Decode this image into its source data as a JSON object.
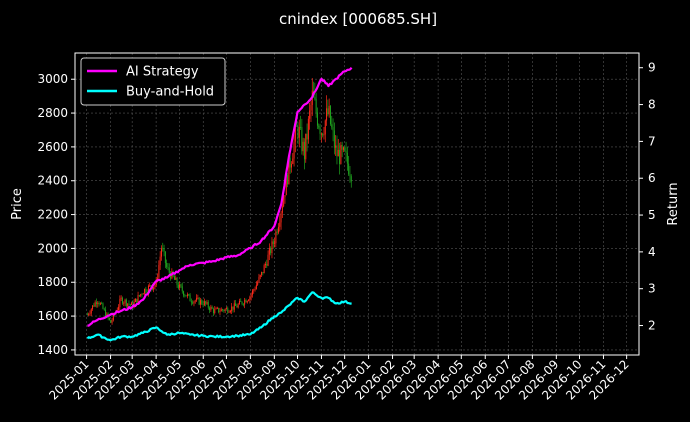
{
  "chart_data": {
    "type": "line",
    "title": "cnindex [000685.SH]",
    "ylabel_left": "Price",
    "ylabel_right": "Return",
    "grid": true,
    "legend_position": "top-left",
    "colors": {
      "background": "#000000",
      "ai_strategy": "#ff00ff",
      "buy_and_hold": "#00ffff",
      "candle_up": "#ff2a1a",
      "candle_down": "#1fa31f",
      "grid": "#555555"
    },
    "x_tick_labels": [
      "2025-01",
      "2025-02",
      "2025-03",
      "2025-04",
      "2025-05",
      "2025-06",
      "2025-07",
      "2025-08",
      "2025-09",
      "2025-10",
      "2025-11",
      "2025-12",
      "2026-01",
      "2026-02",
      "2026-03",
      "2026-04",
      "2026-05",
      "2026-06",
      "2026-07",
      "2026-08",
      "2026-09",
      "2026-10",
      "2026-11",
      "2026-12"
    ],
    "y_left": {
      "ticks": [
        1400,
        1600,
        1800,
        2000,
        2200,
        2400,
        2600,
        2800,
        3000
      ],
      "lim": [
        1370,
        3155
      ]
    },
    "y_right": {
      "ticks": [
        2,
        3,
        4,
        5,
        6,
        7,
        8,
        9
      ],
      "lim": [
        1.2,
        9.4
      ]
    },
    "price_series": {
      "dates": [
        "2025-01-02",
        "2025-01-15",
        "2025-02-01",
        "2025-02-15",
        "2025-03-01",
        "2025-03-15",
        "2025-04-01",
        "2025-04-08",
        "2025-04-15",
        "2025-05-01",
        "2025-05-15",
        "2025-06-01",
        "2025-06-15",
        "2025-07-01",
        "2025-07-15",
        "2025-08-01",
        "2025-08-15",
        "2025-09-01",
        "2025-09-10",
        "2025-09-20",
        "2025-10-01",
        "2025-10-10",
        "2025-10-20",
        "2025-11-01",
        "2025-11-10",
        "2025-11-20",
        "2025-12-01",
        "2025-12-10"
      ],
      "close": [
        1610,
        1700,
        1560,
        1700,
        1660,
        1750,
        1790,
        2010,
        1880,
        1770,
        1700,
        1680,
        1630,
        1640,
        1660,
        1720,
        1840,
        2050,
        2240,
        2480,
        2720,
        2560,
        2890,
        2700,
        2800,
        2560,
        2540,
        2450
      ]
    },
    "series": [
      {
        "name": "AI Strategy",
        "dates": [
          "2025-01-02",
          "2025-01-15",
          "2025-02-01",
          "2025-02-15",
          "2025-03-01",
          "2025-03-15",
          "2025-04-01",
          "2025-04-15",
          "2025-05-01",
          "2025-05-15",
          "2025-06-01",
          "2025-06-15",
          "2025-07-01",
          "2025-07-15",
          "2025-08-01",
          "2025-08-15",
          "2025-09-01",
          "2025-09-10",
          "2025-09-20",
          "2025-10-01",
          "2025-10-10",
          "2025-10-20",
          "2025-11-01",
          "2025-11-10",
          "2025-11-20",
          "2025-12-01",
          "2025-12-10"
        ],
        "values": [
          2.0,
          2.15,
          2.3,
          2.4,
          2.5,
          2.7,
          3.2,
          3.3,
          3.5,
          3.65,
          3.7,
          3.75,
          3.85,
          3.9,
          4.1,
          4.3,
          4.7,
          5.3,
          6.6,
          7.8,
          8.0,
          8.2,
          8.7,
          8.5,
          8.7,
          8.9,
          9.0
        ]
      },
      {
        "name": "Buy-and-Hold",
        "dates": [
          "2025-01-02",
          "2025-01-15",
          "2025-02-01",
          "2025-02-15",
          "2025-03-01",
          "2025-03-15",
          "2025-04-01",
          "2025-04-08",
          "2025-04-15",
          "2025-05-01",
          "2025-05-15",
          "2025-06-01",
          "2025-06-15",
          "2025-07-01",
          "2025-07-15",
          "2025-08-01",
          "2025-08-15",
          "2025-09-01",
          "2025-09-10",
          "2025-09-20",
          "2025-10-01",
          "2025-10-10",
          "2025-10-20",
          "2025-11-01",
          "2025-11-10",
          "2025-11-20",
          "2025-12-01",
          "2025-12-10"
        ],
        "values": [
          1.65,
          1.75,
          1.6,
          1.7,
          1.7,
          1.8,
          1.95,
          1.85,
          1.75,
          1.8,
          1.75,
          1.72,
          1.7,
          1.7,
          1.72,
          1.76,
          1.95,
          2.25,
          2.35,
          2.55,
          2.75,
          2.65,
          2.9,
          2.75,
          2.75,
          2.6,
          2.65,
          2.6
        ]
      }
    ]
  }
}
